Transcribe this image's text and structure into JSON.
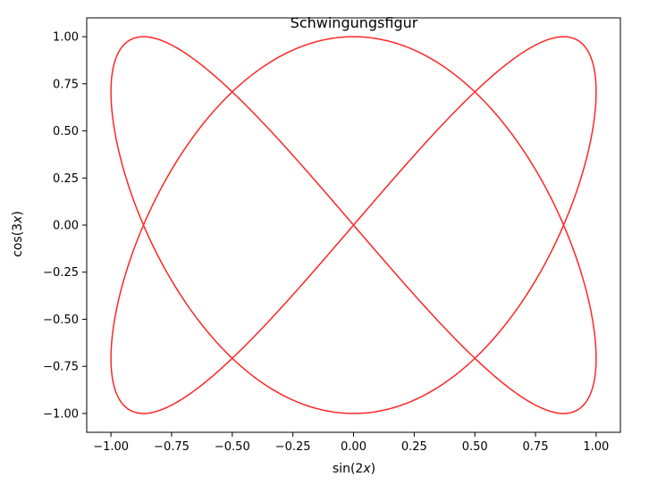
{
  "chart_data": {
    "type": "line",
    "title": "Schwingungsfigur",
    "xlabel_parts": [
      "sin(2",
      "x",
      ")"
    ],
    "ylabel_parts": [
      "cos(3",
      "x",
      ")"
    ],
    "xlim": [
      -1.1,
      1.1
    ],
    "ylim": [
      -1.1,
      1.1
    ],
    "grid": false,
    "series": [
      {
        "x_function": "sin(2t)",
        "y_function": "cos(3t)",
        "t_range": [
          0,
          6.283185307179586
        ],
        "color": "#ff0000",
        "alpha": 0.85
      }
    ],
    "xticks": [
      -1.0,
      -0.75,
      -0.5,
      -0.25,
      0.0,
      0.25,
      0.5,
      0.75,
      1.0
    ],
    "xtick_labels": [
      "−1.00",
      "−0.75",
      "−0.50",
      "−0.25",
      "0.00",
      "0.25",
      "0.50",
      "0.75",
      "1.00"
    ],
    "yticks": [
      1.0,
      0.75,
      0.5,
      0.25,
      0.0,
      -0.25,
      -0.5,
      -0.75,
      -1.0
    ],
    "ytick_labels": [
      "1.00",
      "0.75",
      "0.50",
      "0.25",
      "0.00",
      "−0.25",
      "−0.50",
      "−0.75",
      "−1.00"
    ]
  }
}
